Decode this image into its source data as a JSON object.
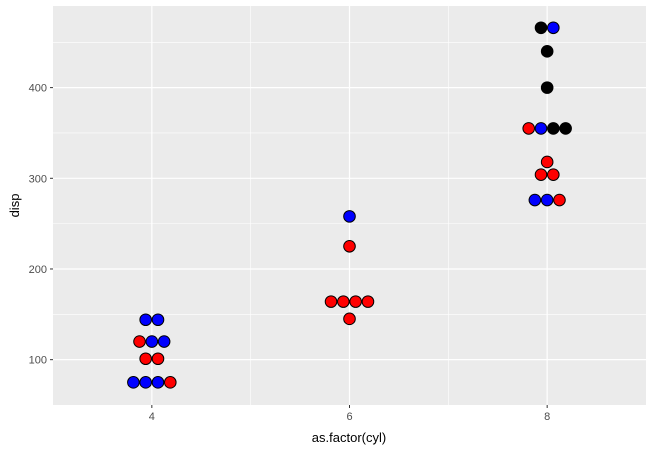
{
  "chart_data": {
    "type": "scatter",
    "title": "",
    "xlabel": "as.factor(cyl)",
    "ylabel": "disp",
    "x_categories": [
      "4",
      "6",
      "8"
    ],
    "y_ticks": [
      100,
      200,
      300,
      400
    ],
    "ylim": [
      50,
      490
    ],
    "grid": true,
    "background": "#ebebeb",
    "gridline_color": "#ffffff",
    "point_outline": "#000000",
    "colors": {
      "red": "#ff0000",
      "blue": "#0000ff",
      "black": "#000000"
    },
    "points": [
      {
        "x": "4",
        "offset": -0.5,
        "y": 144,
        "color": "blue"
      },
      {
        "x": "4",
        "offset": 0.5,
        "y": 144,
        "color": "blue"
      },
      {
        "x": "4",
        "offset": -1,
        "y": 120,
        "color": "red"
      },
      {
        "x": "4",
        "offset": 0,
        "y": 120,
        "color": "blue"
      },
      {
        "x": "4",
        "offset": 1,
        "y": 120,
        "color": "blue"
      },
      {
        "x": "4",
        "offset": -0.5,
        "y": 101,
        "color": "red"
      },
      {
        "x": "4",
        "offset": 0.5,
        "y": 101,
        "color": "red"
      },
      {
        "x": "4",
        "offset": -1.5,
        "y": 75,
        "color": "blue"
      },
      {
        "x": "4",
        "offset": -0.5,
        "y": 75,
        "color": "blue"
      },
      {
        "x": "4",
        "offset": 0.5,
        "y": 75,
        "color": "blue"
      },
      {
        "x": "4",
        "offset": 1.5,
        "y": 75,
        "color": "red"
      },
      {
        "x": "6",
        "offset": 0,
        "y": 258,
        "color": "blue"
      },
      {
        "x": "6",
        "offset": 0,
        "y": 225,
        "color": "red"
      },
      {
        "x": "6",
        "offset": -1.5,
        "y": 164,
        "color": "red"
      },
      {
        "x": "6",
        "offset": -0.5,
        "y": 164,
        "color": "red"
      },
      {
        "x": "6",
        "offset": 0.5,
        "y": 164,
        "color": "red"
      },
      {
        "x": "6",
        "offset": 1.5,
        "y": 164,
        "color": "red"
      },
      {
        "x": "6",
        "offset": 0,
        "y": 145,
        "color": "red"
      },
      {
        "x": "8",
        "offset": -0.5,
        "y": 466,
        "color": "black"
      },
      {
        "x": "8",
        "offset": 0.5,
        "y": 466,
        "color": "blue"
      },
      {
        "x": "8",
        "offset": 0,
        "y": 440,
        "color": "black"
      },
      {
        "x": "8",
        "offset": 0,
        "y": 400,
        "color": "black"
      },
      {
        "x": "8",
        "offset": -1.5,
        "y": 355,
        "color": "red"
      },
      {
        "x": "8",
        "offset": -0.5,
        "y": 355,
        "color": "blue"
      },
      {
        "x": "8",
        "offset": 0.5,
        "y": 355,
        "color": "black"
      },
      {
        "x": "8",
        "offset": 1.5,
        "y": 355,
        "color": "black"
      },
      {
        "x": "8",
        "offset": 0,
        "y": 318,
        "color": "red"
      },
      {
        "x": "8",
        "offset": -0.5,
        "y": 304,
        "color": "red"
      },
      {
        "x": "8",
        "offset": 0.5,
        "y": 304,
        "color": "red"
      },
      {
        "x": "8",
        "offset": -1,
        "y": 276,
        "color": "blue"
      },
      {
        "x": "8",
        "offset": 0,
        "y": 276,
        "color": "blue"
      },
      {
        "x": "8",
        "offset": 1,
        "y": 276,
        "color": "red"
      }
    ]
  }
}
